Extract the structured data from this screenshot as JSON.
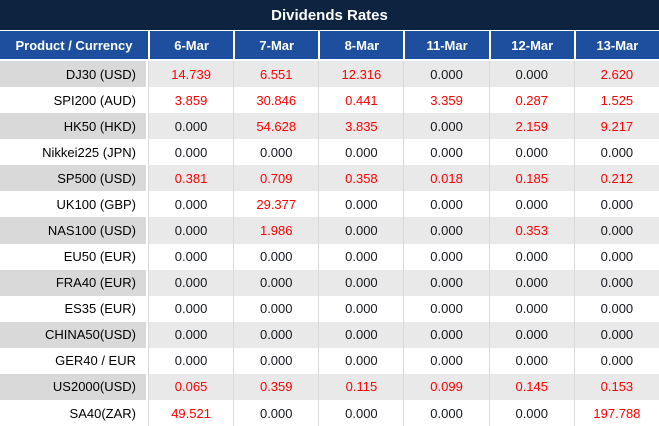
{
  "title": "Dividends Rates",
  "chart_data": {
    "type": "table",
    "title": "Dividends Rates",
    "columns": [
      "Product / Currency",
      "6-Mar",
      "7-Mar",
      "8-Mar",
      "11-Mar",
      "12-Mar",
      "13-Mar"
    ],
    "rows": [
      {
        "product": "DJ30 (USD)",
        "values": [
          "14.739",
          "6.551",
          "12.316",
          "0.000",
          "0.000",
          "2.620"
        ]
      },
      {
        "product": "SPI200 (AUD)",
        "values": [
          "3.859",
          "30.846",
          "0.441",
          "3.359",
          "0.287",
          "1.525"
        ]
      },
      {
        "product": "HK50 (HKD)",
        "values": [
          "0.000",
          "54.628",
          "3.835",
          "0.000",
          "2.159",
          "9.217"
        ]
      },
      {
        "product": "Nikkei225 (JPN)",
        "values": [
          "0.000",
          "0.000",
          "0.000",
          "0.000",
          "0.000",
          "0.000"
        ]
      },
      {
        "product": "SP500 (USD)",
        "values": [
          "0.381",
          "0.709",
          "0.358",
          "0.018",
          "0.185",
          "0.212"
        ]
      },
      {
        "product": "UK100 (GBP)",
        "values": [
          "0.000",
          "29.377",
          "0.000",
          "0.000",
          "0.000",
          "0.000"
        ]
      },
      {
        "product": "NAS100 (USD)",
        "values": [
          "0.000",
          "1.986",
          "0.000",
          "0.000",
          "0.353",
          "0.000"
        ]
      },
      {
        "product": "EU50 (EUR)",
        "values": [
          "0.000",
          "0.000",
          "0.000",
          "0.000",
          "0.000",
          "0.000"
        ]
      },
      {
        "product": "FRA40 (EUR)",
        "values": [
          "0.000",
          "0.000",
          "0.000",
          "0.000",
          "0.000",
          "0.000"
        ]
      },
      {
        "product": "ES35 (EUR)",
        "values": [
          "0.000",
          "0.000",
          "0.000",
          "0.000",
          "0.000",
          "0.000"
        ]
      },
      {
        "product": "CHINA50(USD)",
        "values": [
          "0.000",
          "0.000",
          "0.000",
          "0.000",
          "0.000",
          "0.000"
        ]
      },
      {
        "product": "GER40 / EUR",
        "values": [
          "0.000",
          "0.000",
          "0.000",
          "0.000",
          "0.000",
          "0.000"
        ]
      },
      {
        "product": "US2000(USD)",
        "values": [
          "0.065",
          "0.359",
          "0.115",
          "0.099",
          "0.145",
          "0.153"
        ]
      },
      {
        "product": "SA40(ZAR)",
        "values": [
          "49.521",
          "0.000",
          "0.000",
          "0.000",
          "0.000",
          "197.788"
        ]
      }
    ],
    "zero_value": "0.000",
    "value_color_rule": "non-zero values rendered red, zeros rendered dark"
  },
  "colors": {
    "title_bg": "#0d2340",
    "header_bg": "#1d4f9e",
    "header_text": "#ffffff",
    "row_gray_product": "#d9d9d9",
    "row_gray_value": "#e9e9e9",
    "grid_line": "#d9d9d9",
    "value_red": "#fe0000",
    "value_dark": "#15181d",
    "product_text": "#000000"
  }
}
